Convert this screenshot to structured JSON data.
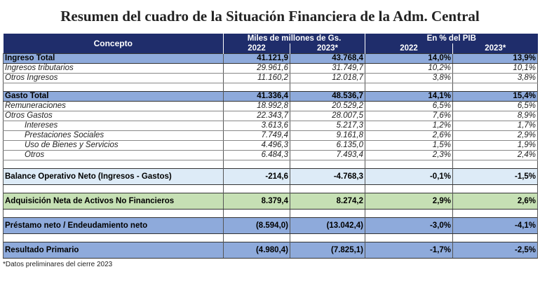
{
  "title": "Resumen del cuadro de la Situación Financiera de la Adm. Central",
  "header": {
    "concepto": "Concepto",
    "group1": "Miles de millones de Gs.",
    "group2": "En % del PIB",
    "years": [
      "2022",
      "2023*",
      "2022",
      "2023*"
    ]
  },
  "rows": [
    {
      "type": "total",
      "label": "Ingreso Total",
      "values": [
        "41.121,9",
        "43.768,4",
        "14,0%",
        "13,9%"
      ]
    },
    {
      "type": "item",
      "label": "Ingresos tributarios",
      "values": [
        "29.961,6",
        "31.749,7",
        "10,2%",
        "10,1%"
      ]
    },
    {
      "type": "item",
      "label": "Otros Ingresos",
      "values": [
        "11.160,2",
        "12.018,7",
        "3,8%",
        "3,8%"
      ]
    },
    {
      "type": "blank"
    },
    {
      "type": "total",
      "label": "Gasto Total",
      "values": [
        "41.336,4",
        "48.536,7",
        "14,1%",
        "15,4%"
      ]
    },
    {
      "type": "item",
      "label": "Remuneraciones",
      "values": [
        "18.992,8",
        "20.529,2",
        "6,5%",
        "6,5%"
      ]
    },
    {
      "type": "item",
      "label": "Otros Gastos",
      "values": [
        "22.343,7",
        "28.007,5",
        "7,6%",
        "8,9%"
      ]
    },
    {
      "type": "item sub",
      "label": "Intereses",
      "values": [
        "3.613,6",
        "5.217,3",
        "1,2%",
        "1,7%"
      ]
    },
    {
      "type": "item sub",
      "label": "Prestaciones Sociales",
      "values": [
        "7.749,4",
        "9.161,8",
        "2,6%",
        "2,9%"
      ]
    },
    {
      "type": "item sub",
      "label": "Uso de Bienes y Servicios",
      "values": [
        "4.496,3",
        "6.135,0",
        "1,5%",
        "1,9%"
      ]
    },
    {
      "type": "item sub",
      "label": "Otros",
      "values": [
        "6.484,3",
        "7.493,4",
        "2,3%",
        "2,4%"
      ]
    },
    {
      "type": "blank"
    },
    {
      "type": "big balance",
      "label": "Balance Operativo Neto (Ingresos - Gastos)",
      "values": [
        "-214,6",
        "-4.768,3",
        "-0,1%",
        "-1,5%"
      ]
    },
    {
      "type": "blank"
    },
    {
      "type": "big adq",
      "label": "Adquisición Neta de Activos No Financieros",
      "values": [
        "8.379,4",
        "8.274,2",
        "2,9%",
        "2,6%"
      ]
    },
    {
      "type": "blank"
    },
    {
      "type": "big blue",
      "label": "Préstamo neto / Endeudamiento neto",
      "values": [
        "(8.594,0)",
        "(13.042,4)",
        "-3,0%",
        "-4,1%"
      ]
    },
    {
      "type": "blank"
    },
    {
      "type": "big blue",
      "label": "Resultado Primario",
      "values": [
        "(4.980,4)",
        "(7.825,1)",
        "-1,7%",
        "-2,5%"
      ]
    }
  ],
  "footnote": "*Datos preliminares del cierre 2023"
}
